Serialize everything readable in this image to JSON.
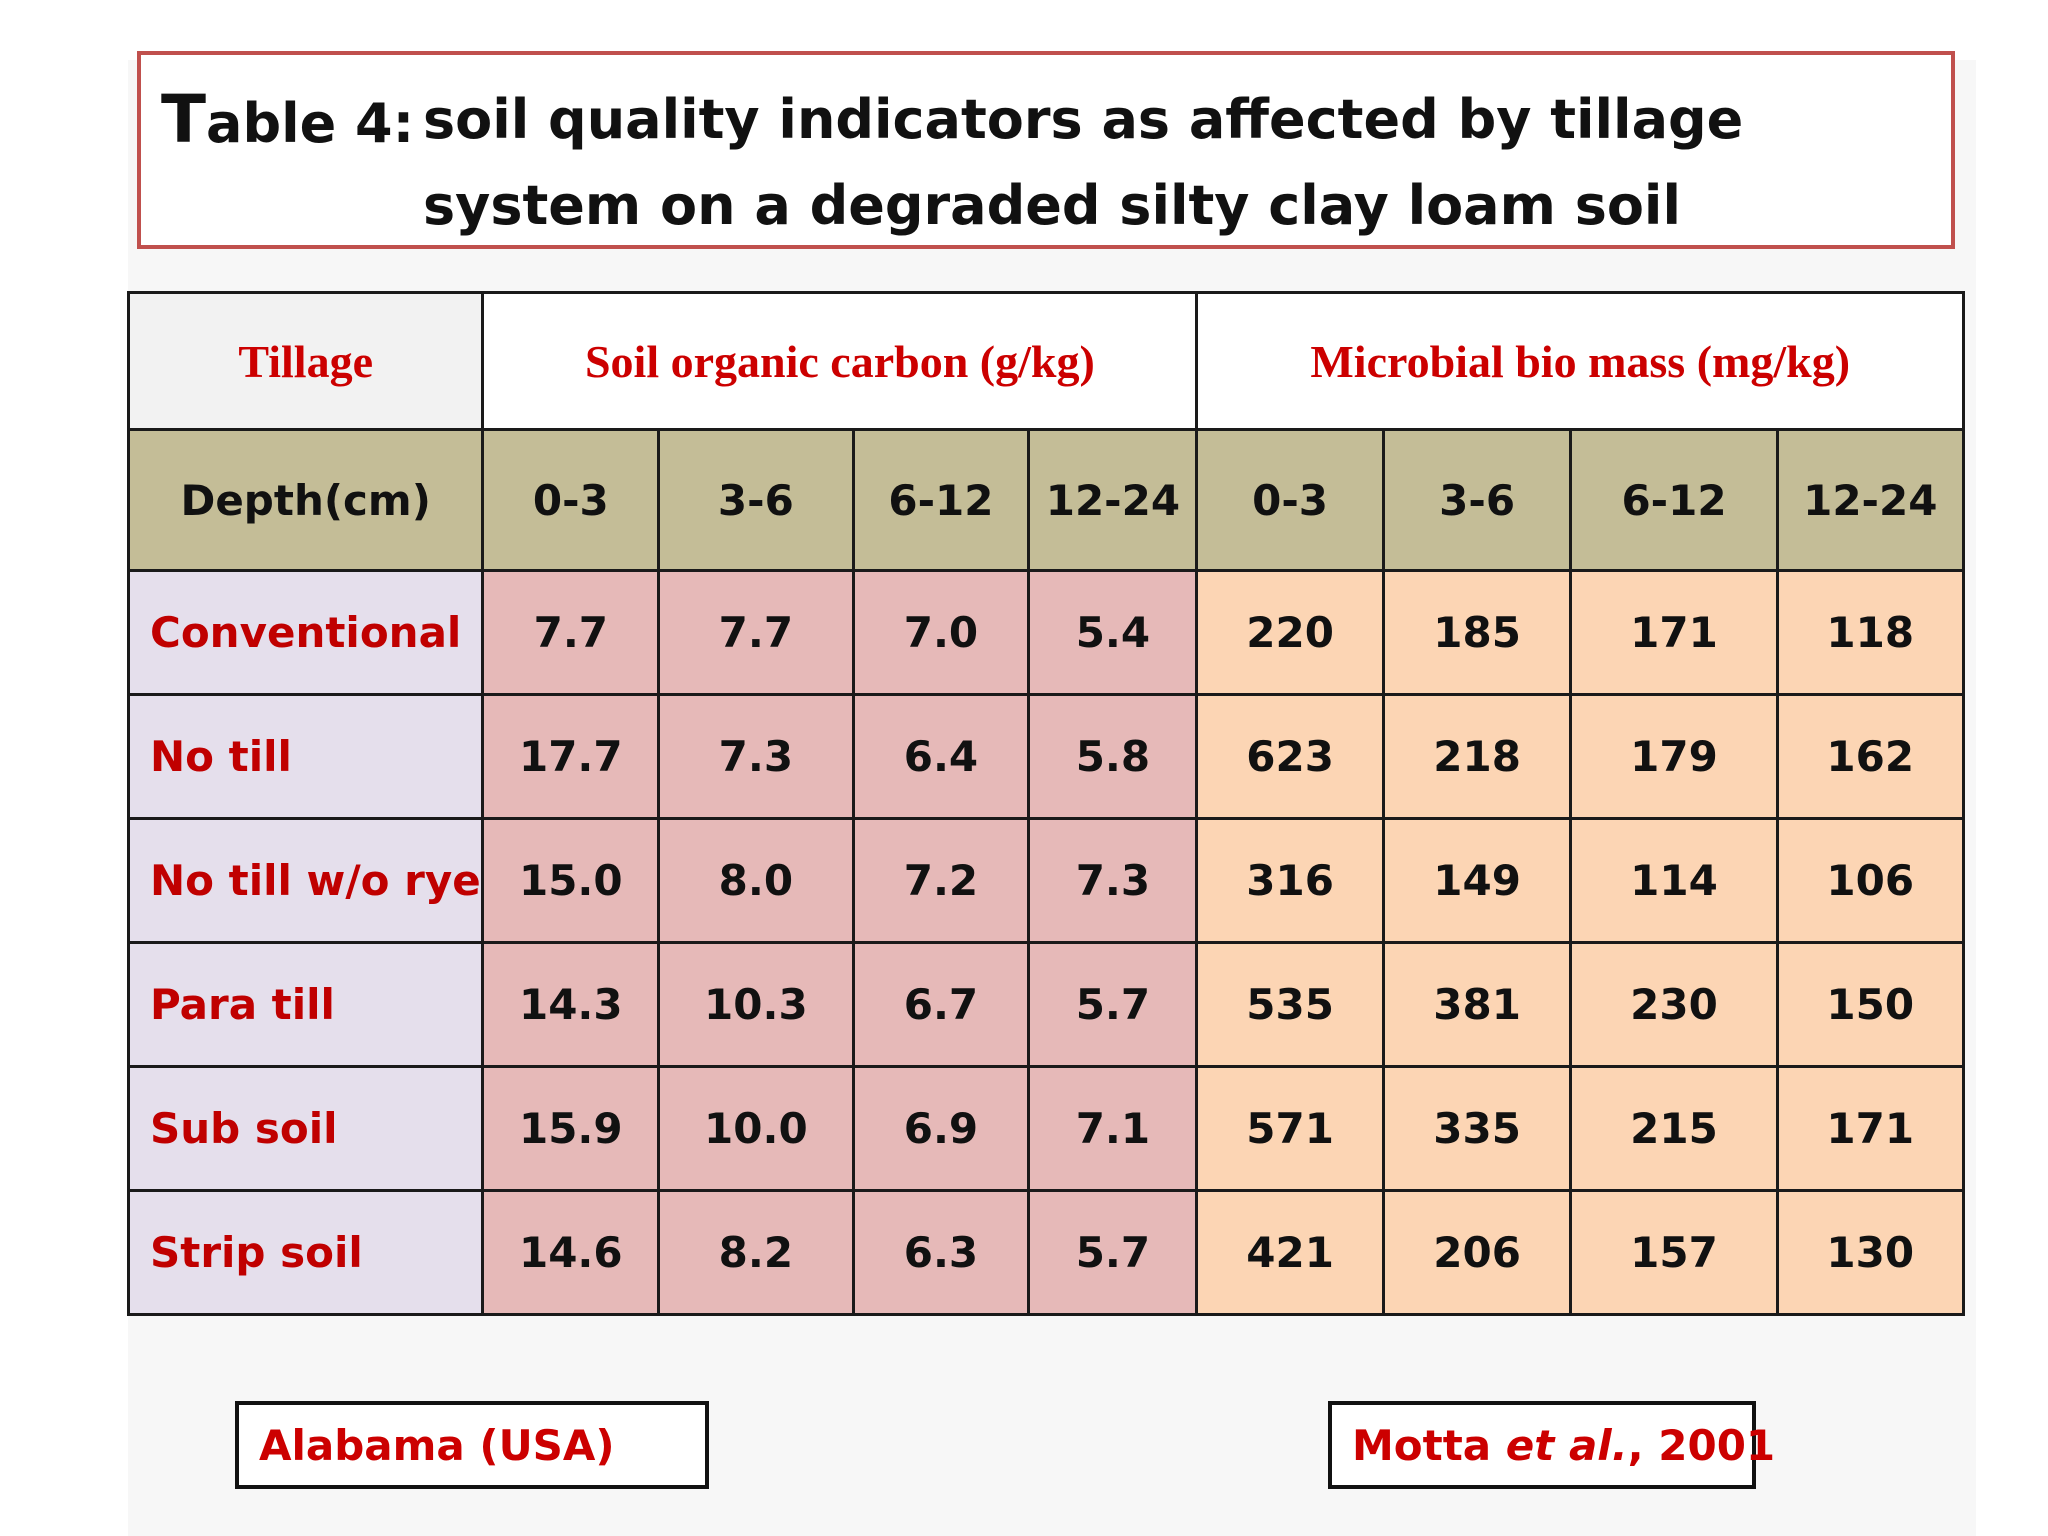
{
  "title": {
    "prefix_initial": "T",
    "prefix_rest": "able 4:",
    "body": "soil quality indicators as affected by tillage system on a degraded silty clay loam soil"
  },
  "table": {
    "header": {
      "tillage": "Tillage",
      "soc": "Soil organic carbon (g/kg)",
      "mbm": "Microbial bio mass (mg/kg)"
    },
    "depth_label": "Depth(cm)",
    "depths": [
      "0-3",
      "3-6",
      "6-12",
      "12-24",
      "0-3",
      "3-6",
      "6-12",
      "12-24"
    ],
    "rows": [
      {
        "label": "Conventional",
        "values": [
          "7.7",
          "7.7",
          "7.0",
          "5.4",
          "220",
          "185",
          "171",
          "118"
        ]
      },
      {
        "label": "No till",
        "values": [
          "17.7",
          "7.3",
          "6.4",
          "5.8",
          "623",
          "218",
          "179",
          "162"
        ]
      },
      {
        "label": "No till w/o rye",
        "values": [
          "15.0",
          "8.0",
          "7.2",
          "7.3",
          "316",
          "149",
          "114",
          "106"
        ]
      },
      {
        "label": "Para till",
        "values": [
          "14.3",
          "10.3",
          "6.7",
          "5.7",
          "535",
          "381",
          "230",
          "150"
        ]
      },
      {
        "label": "Sub soil",
        "values": [
          "15.9",
          "10.0",
          "6.9",
          "7.1",
          "571",
          "335",
          "215",
          "171"
        ]
      },
      {
        "label": "Strip soil",
        "values": [
          "14.6",
          "8.2",
          "6.3",
          "5.7",
          "421",
          "206",
          "157",
          "130"
        ]
      }
    ]
  },
  "footer": {
    "location": "Alabama (USA)",
    "citation_author": "Motta ",
    "citation_etal": "et al.",
    "citation_rest": ", 2001"
  },
  "colors": {
    "title_border": "#c0504d",
    "header_text": "#cc0000",
    "depth_row_bg": "#c4bd97",
    "label_col_bg": "#e5dfec",
    "soc_bg": "#e6b9b8",
    "mbm_bg": "#fcd5b4"
  }
}
